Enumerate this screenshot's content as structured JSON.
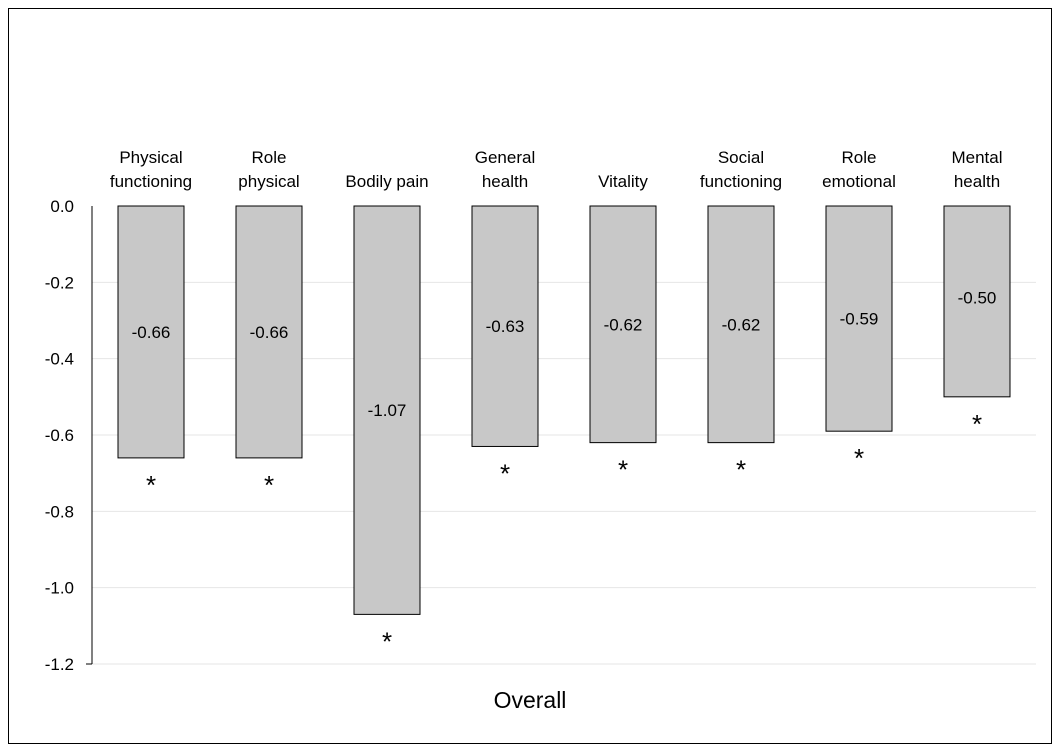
{
  "chart_data": {
    "type": "bar",
    "categories": [
      [
        "Physical",
        "functioning"
      ],
      [
        "Role",
        "physical"
      ],
      [
        "Bodily pain"
      ],
      [
        "General",
        "health"
      ],
      [
        "Vitality"
      ],
      [
        "Social",
        "functioning"
      ],
      [
        "Role",
        "emotional"
      ],
      [
        "Mental",
        "health"
      ]
    ],
    "values": [
      -0.66,
      -0.66,
      -1.07,
      -0.63,
      -0.62,
      -0.62,
      -0.59,
      -0.5
    ],
    "data_labels": [
      "-0.66",
      "-0.66",
      "-1.07",
      "-0.63",
      "-0.62",
      "-0.62",
      "-0.59",
      "-0.50"
    ],
    "significance_marker": "*",
    "title": "",
    "xlabel": "Overall",
    "ylabel": "",
    "ylim": [
      -1.2,
      0.0
    ],
    "yticks": [
      "0.0",
      "-0.2",
      "-0.4",
      "-0.6",
      "-0.8",
      "-1.0",
      "-1.2"
    ],
    "ytick_values": [
      0.0,
      -0.2,
      -0.4,
      -0.6,
      -0.8,
      -1.0,
      -1.2
    ],
    "grid": true,
    "category_axis_position": "top",
    "colors": {
      "bar_fill": "#c8c8c8",
      "bar_stroke": "#000000",
      "grid": "#e6e6e6"
    }
  }
}
